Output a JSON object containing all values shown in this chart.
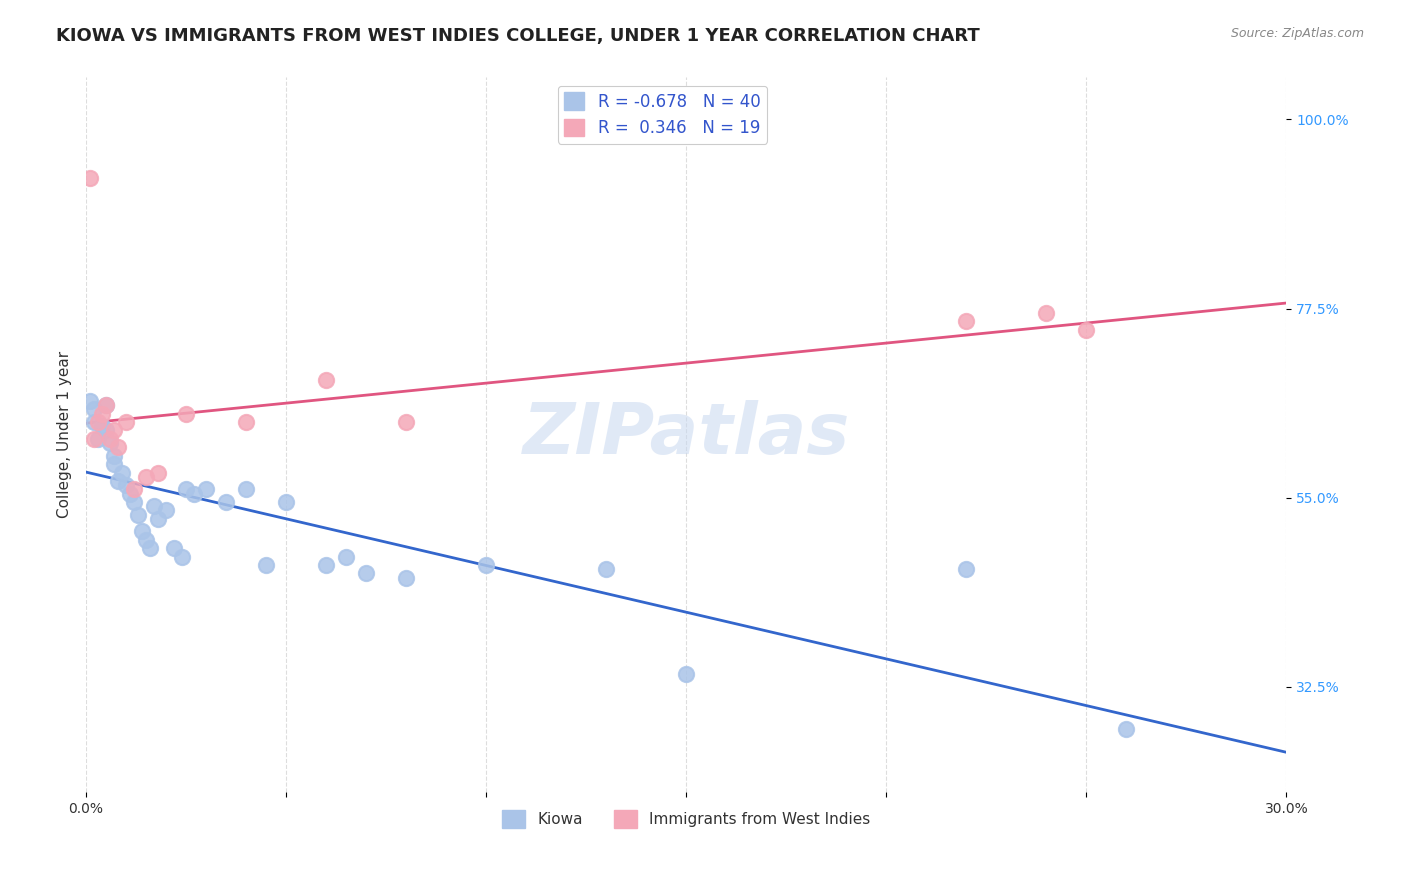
{
  "title": "KIOWA VS IMMIGRANTS FROM WEST INDIES COLLEGE, UNDER 1 YEAR CORRELATION CHART",
  "source": "Source: ZipAtlas.com",
  "ylabel": "College, Under 1 year",
  "xlim": [
    0.0,
    0.3
  ],
  "ylim": [
    0.2,
    1.05
  ],
  "xticks": [
    0.0,
    0.05,
    0.1,
    0.15,
    0.2,
    0.25,
    0.3
  ],
  "xticklabels": [
    "0.0%",
    "",
    "",
    "",
    "",
    "",
    "30.0%"
  ],
  "yticks_right": [
    0.325,
    0.55,
    0.775,
    1.0
  ],
  "yticklabels_right": [
    "32.5%",
    "55.0%",
    "77.5%",
    "100.0%"
  ],
  "background_color": "#ffffff",
  "grid_color": "#dddddd",
  "watermark": "ZIPatlas",
  "series_blue": {
    "label": "Kiowa",
    "legend_label": "R = -0.678   N = 40",
    "R": -0.678,
    "N": 40,
    "color": "#aac4e8",
    "line_color": "#3366cc",
    "x": [
      0.001,
      0.002,
      0.002,
      0.003,
      0.004,
      0.005,
      0.005,
      0.006,
      0.007,
      0.007,
      0.008,
      0.009,
      0.01,
      0.011,
      0.012,
      0.013,
      0.014,
      0.015,
      0.016,
      0.017,
      0.018,
      0.02,
      0.022,
      0.024,
      0.025,
      0.027,
      0.03,
      0.035,
      0.04,
      0.045,
      0.05,
      0.06,
      0.065,
      0.07,
      0.08,
      0.1,
      0.13,
      0.15,
      0.22,
      0.26
    ],
    "y": [
      0.665,
      0.64,
      0.655,
      0.62,
      0.635,
      0.66,
      0.63,
      0.615,
      0.6,
      0.59,
      0.57,
      0.58,
      0.565,
      0.555,
      0.545,
      0.53,
      0.51,
      0.5,
      0.49,
      0.54,
      0.525,
      0.535,
      0.49,
      0.48,
      0.56,
      0.555,
      0.56,
      0.545,
      0.56,
      0.47,
      0.545,
      0.47,
      0.48,
      0.46,
      0.455,
      0.47,
      0.465,
      0.34,
      0.465,
      0.275
    ]
  },
  "series_pink": {
    "label": "Immigrants from West Indies",
    "legend_label": "R =  0.346   N = 19",
    "R": 0.346,
    "N": 19,
    "color": "#f4a8b8",
    "line_color": "#e05580",
    "x": [
      0.001,
      0.002,
      0.003,
      0.004,
      0.005,
      0.006,
      0.007,
      0.008,
      0.01,
      0.012,
      0.015,
      0.018,
      0.025,
      0.04,
      0.06,
      0.08,
      0.22,
      0.24,
      0.25
    ],
    "y": [
      0.93,
      0.62,
      0.64,
      0.65,
      0.66,
      0.62,
      0.63,
      0.61,
      0.64,
      0.56,
      0.575,
      0.58,
      0.65,
      0.64,
      0.69,
      0.64,
      0.76,
      0.77,
      0.75
    ]
  },
  "title_fontsize": 13,
  "axis_fontsize": 11,
  "tick_fontsize": 10
}
